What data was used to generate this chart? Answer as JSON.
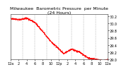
{
  "title": "Milwaukee  Barometric Pressure  per Minute\n(24 Hours)",
  "line_color": "#ff0000",
  "bg_color": "#ffffff",
  "plot_bg_color": "#ffffff",
  "grid_color": "#888888",
  "ylim": [
    29.0,
    30.25
  ],
  "yticks": [
    29.0,
    29.2,
    29.4,
    29.6,
    29.8,
    30.0,
    30.2
  ],
  "n_points": 1440,
  "text_color": "#000000",
  "title_fontsize": 4.5,
  "tick_fontsize": 3.5,
  "marker_size": 0.9,
  "n_gridlines": 7,
  "xtick_labels": [
    "12a",
    "2",
    "4",
    "6",
    "8",
    "10",
    "12p",
    "2",
    "4",
    "6",
    "8",
    "10",
    "12a"
  ]
}
